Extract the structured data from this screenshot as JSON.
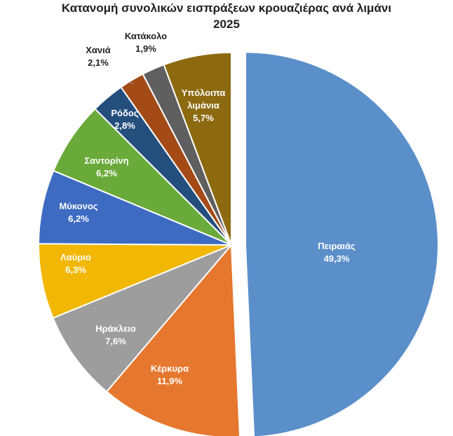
{
  "chart_data": {
    "type": "pie",
    "title_line1": "Κατανομή συνολικών εισπράξεων κρουαζιέρας ανά λιμάνι",
    "title_line2": "2025",
    "slices": [
      {
        "label": "Πειραιάς",
        "value": 49.3,
        "value_text": "49,3%",
        "color": "#5b8fca",
        "label_color": "#ffffff",
        "exploded": true
      },
      {
        "label": "Κέρκυρα",
        "value": 11.9,
        "value_text": "11,9%",
        "color": "#e6772e",
        "label_color": "#ffffff"
      },
      {
        "label": "Ηράκλειο",
        "value": 7.6,
        "value_text": "7,6%",
        "color": "#9d9d9d",
        "label_color": "#ffffff"
      },
      {
        "label": "Λαύριο",
        "value": 6.3,
        "value_text": "6,3%",
        "color": "#f2b705",
        "label_color": "#ffffff"
      },
      {
        "label": "Μύκονος",
        "value": 6.2,
        "value_text": "6,2%",
        "color": "#3d6bc1",
        "label_color": "#ffffff"
      },
      {
        "label": "Σαντορίνη",
        "value": 6.2,
        "value_text": "6,2%",
        "color": "#6aaa3a",
        "label_color": "#ffffff"
      },
      {
        "label": "Ρόδος",
        "value": 2.8,
        "value_text": "2,8%",
        "color": "#244f7d",
        "label_color": "#ffffff"
      },
      {
        "label": "Χανιά",
        "value": 2.1,
        "value_text": "2,1%",
        "color": "#a34a17",
        "label_color": "#1f1f1f",
        "outside": true
      },
      {
        "label": "Κατάκολο",
        "value": 1.9,
        "value_text": "1,9%",
        "color": "#5f5f5f",
        "label_color": "#1f1f1f",
        "outside": true
      },
      {
        "label": "Υπόλοιπα λιμάνια",
        "value": 5.7,
        "value_text": "5,7%",
        "color": "#8d6a10",
        "label_color": "#ffffff"
      }
    ]
  }
}
